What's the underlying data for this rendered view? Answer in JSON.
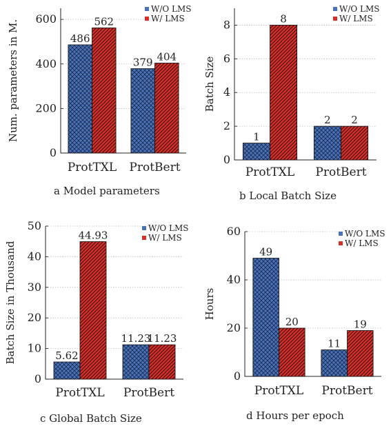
{
  "colors": {
    "wo_lms": "#4a72b8",
    "w_lms": "#d6302b",
    "axis": "#222222",
    "grid": "#bbbbbb"
  },
  "chart_data": [
    {
      "type": "bar",
      "caption": "a Model parameters",
      "ylabel": "Num. parameters in M.",
      "categories": [
        "ProtTXL",
        "ProtBert"
      ],
      "ylim": [
        0,
        650
      ],
      "yticks": [
        0,
        200,
        400,
        600
      ],
      "grid": true,
      "legend_position": "top-right",
      "series": [
        {
          "name": "W/O LMS",
          "values": [
            486,
            379
          ],
          "labels": [
            "486",
            "379"
          ]
        },
        {
          "name": "W/ LMS",
          "values": [
            562,
            404
          ],
          "labels": [
            "562",
            "404"
          ]
        }
      ]
    },
    {
      "type": "bar",
      "caption": "b Local Batch Size",
      "ylabel": "Batch Size",
      "categories": [
        "ProtTXL",
        "ProtBert"
      ],
      "ylim": [
        0,
        9
      ],
      "yticks": [
        0,
        2,
        4,
        6,
        8
      ],
      "grid": true,
      "legend_position": "top-right",
      "series": [
        {
          "name": "W/O LMS",
          "values": [
            1,
            2
          ],
          "labels": [
            "1",
            "2"
          ]
        },
        {
          "name": "W/ LMS",
          "values": [
            8,
            2
          ],
          "labels": [
            "8",
            "2"
          ]
        }
      ]
    },
    {
      "type": "bar",
      "caption": "c Global Batch Size",
      "ylabel": "Batch Size in Thousand",
      "categories": [
        "ProtTXL",
        "ProtBert"
      ],
      "ylim": [
        0,
        50
      ],
      "yticks": [
        0,
        10,
        20,
        30,
        40,
        50
      ],
      "grid": true,
      "legend_position": "top-right",
      "series": [
        {
          "name": "W/O LMS",
          "values": [
            5.62,
            11.23
          ],
          "labels": [
            "5.62",
            "11.23"
          ]
        },
        {
          "name": "W/ LMS",
          "values": [
            44.93,
            11.23
          ],
          "labels": [
            "44.93",
            "11.23"
          ]
        }
      ]
    },
    {
      "type": "bar",
      "caption": "d Hours per epoch",
      "ylabel": "Hours",
      "categories": [
        "ProtTXL",
        "ProtBert"
      ],
      "ylim": [
        0,
        60
      ],
      "yticks": [
        0,
        20,
        40,
        60
      ],
      "grid": true,
      "legend_position": "top-right",
      "series": [
        {
          "name": "W/O LMS",
          "values": [
            49,
            11
          ],
          "labels": [
            "49",
            "11"
          ]
        },
        {
          "name": "W/ LMS",
          "values": [
            20,
            19
          ],
          "labels": [
            "20",
            "19"
          ]
        }
      ]
    }
  ]
}
